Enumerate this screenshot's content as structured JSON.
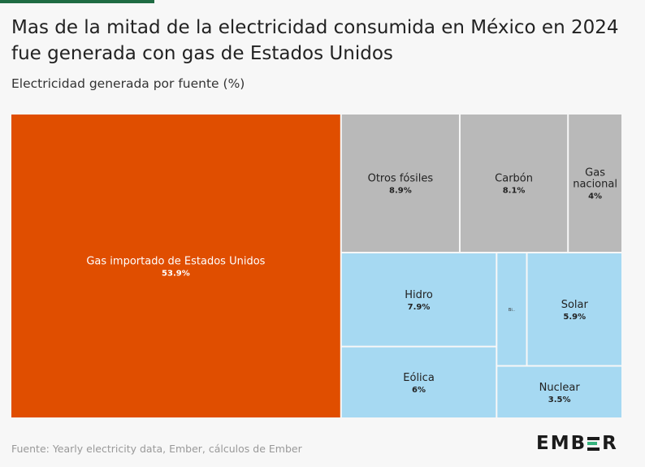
{
  "title": "Mas de la mitad de la electricidad consumida en México en 2024 fue generada con gas de Estados Unidos",
  "subtitle": "Electricidad generada por fuente (%)",
  "source": "Fuente: Yearly electricity data, Ember, cálculos de Ember",
  "logo": {
    "text": "EMBER",
    "left": "EMB",
    "right": "R"
  },
  "colors": {
    "imported_gas": "#e04e00",
    "fossil": "#b9b9b9",
    "clean": "#a6d9f2",
    "accent": "#1f6b43",
    "logo_accent": "#36b37e"
  },
  "chart_data": {
    "type": "treemap",
    "title": "Mas de la mitad de la electricidad consumida en México en 2024 fue generada con gas de Estados Unidos",
    "subtitle": "Electricidad generada por fuente (%)",
    "groups": [
      {
        "name": "",
        "color": "#e04e00",
        "items": [
          {
            "name": "Gas importado de Estados Unidos",
            "label": "53.9%",
            "value": 53.9
          }
        ]
      },
      {
        "name": "",
        "color": "#b9b9b9",
        "items": [
          {
            "name": "Otros fósiles",
            "label": "8.9%",
            "value": 8.9
          },
          {
            "name": "Carbón",
            "label": "8.1%",
            "value": 8.1
          },
          {
            "name": "Gas nacional",
            "label": "4%",
            "value": 4.0
          }
        ]
      },
      {
        "name": "",
        "color": "#a6d9f2",
        "items": [
          {
            "name": "Hidro",
            "label": "7.9%",
            "value": 7.9
          },
          {
            "name": "Eólica",
            "label": "6%",
            "value": 6.0
          },
          {
            "name": "Solar",
            "label": "5.9%",
            "value": 5.9
          },
          {
            "name": "Nuclear",
            "label": "3.5%",
            "value": 3.5
          },
          {
            "name": "",
            "label": "Bi..",
            "value": 1.8
          }
        ]
      }
    ]
  }
}
